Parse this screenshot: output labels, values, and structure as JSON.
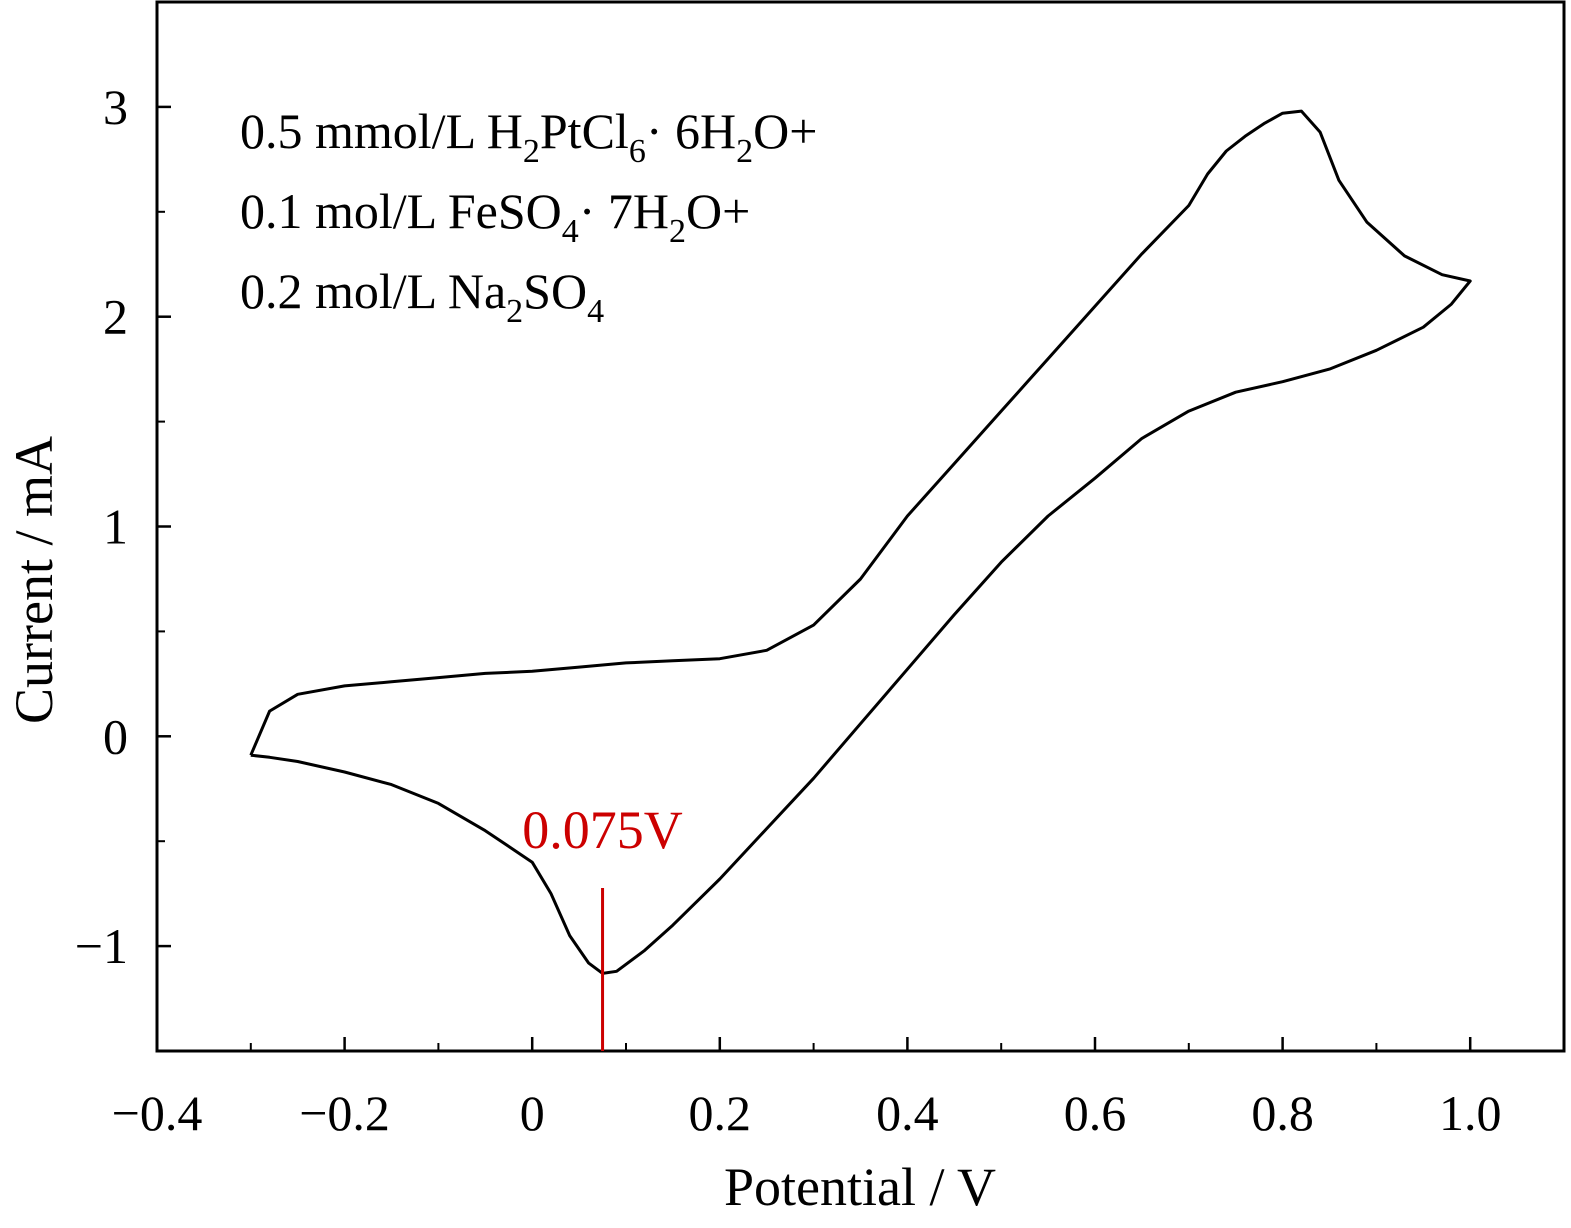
{
  "chart_data": {
    "type": "line",
    "xlabel": "Potential / V",
    "ylabel": "Current / mA",
    "xlim": [
      -0.4,
      1.1
    ],
    "ylim": [
      -1.5,
      3.5
    ],
    "x_ticks": [
      {
        "value": -0.4,
        "label": "−0.4"
      },
      {
        "value": -0.2,
        "label": "−0.2"
      },
      {
        "value": 0,
        "label": "0"
      },
      {
        "value": 0.2,
        "label": "0.2"
      },
      {
        "value": 0.4,
        "label": "0.4"
      },
      {
        "value": 0.6,
        "label": "0.6"
      },
      {
        "value": 0.8,
        "label": "0.8"
      },
      {
        "value": 1.0,
        "label": "1.0"
      }
    ],
    "y_ticks": [
      {
        "value": -1,
        "label": "−1"
      },
      {
        "value": 0,
        "label": "0"
      },
      {
        "value": 1,
        "label": "1"
      },
      {
        "value": 2,
        "label": "2"
      },
      {
        "value": 3,
        "label": "3"
      }
    ],
    "legend_lines": [
      [
        {
          "t": "0.5 mmol/L H"
        },
        {
          "t": "2",
          "sub": true
        },
        {
          "t": "PtCl"
        },
        {
          "t": "6",
          "sub": true
        },
        {
          "t": "· 6H"
        },
        {
          "t": "2",
          "sub": true
        },
        {
          "t": "O+"
        }
      ],
      [
        {
          "t": "0.1 mol/L FeSO"
        },
        {
          "t": "4",
          "sub": true
        },
        {
          "t": "· 7H"
        },
        {
          "t": "2",
          "sub": true
        },
        {
          "t": "O+"
        }
      ],
      [
        {
          "t": "0.2 mol/L Na"
        },
        {
          "t": "2",
          "sub": true
        },
        {
          "t": "SO"
        },
        {
          "t": "4",
          "sub": true
        }
      ]
    ],
    "legend_placement": "top-left",
    "annotation": {
      "x": 0.075,
      "label": "0.075V",
      "color": "#cc0000"
    },
    "grid": false,
    "series": [
      {
        "color": "#000000",
        "points": [
          [
            -0.3,
            -0.09
          ],
          [
            -0.28,
            -0.1
          ],
          [
            -0.25,
            -0.12
          ],
          [
            -0.2,
            -0.17
          ],
          [
            -0.15,
            -0.23
          ],
          [
            -0.1,
            -0.32
          ],
          [
            -0.05,
            -0.45
          ],
          [
            0.0,
            -0.6
          ],
          [
            0.02,
            -0.75
          ],
          [
            0.04,
            -0.95
          ],
          [
            0.06,
            -1.08
          ],
          [
            0.075,
            -1.13
          ],
          [
            0.09,
            -1.12
          ],
          [
            0.12,
            -1.02
          ],
          [
            0.15,
            -0.9
          ],
          [
            0.2,
            -0.68
          ],
          [
            0.25,
            -0.44
          ],
          [
            0.3,
            -0.2
          ],
          [
            0.35,
            0.06
          ],
          [
            0.4,
            0.32
          ],
          [
            0.45,
            0.58
          ],
          [
            0.5,
            0.83
          ],
          [
            0.55,
            1.05
          ],
          [
            0.6,
            1.23
          ],
          [
            0.65,
            1.42
          ],
          [
            0.7,
            1.55
          ],
          [
            0.75,
            1.64
          ],
          [
            0.8,
            1.69
          ],
          [
            0.85,
            1.75
          ],
          [
            0.9,
            1.84
          ],
          [
            0.95,
            1.95
          ],
          [
            0.98,
            2.06
          ],
          [
            1.0,
            2.17
          ],
          [
            0.97,
            2.2
          ],
          [
            0.93,
            2.29
          ],
          [
            0.89,
            2.45
          ],
          [
            0.86,
            2.65
          ],
          [
            0.84,
            2.88
          ],
          [
            0.82,
            2.98
          ],
          [
            0.8,
            2.97
          ],
          [
            0.78,
            2.92
          ],
          [
            0.76,
            2.86
          ],
          [
            0.74,
            2.79
          ],
          [
            0.72,
            2.68
          ],
          [
            0.7,
            2.53
          ],
          [
            0.65,
            2.3
          ],
          [
            0.6,
            2.05
          ],
          [
            0.55,
            1.8
          ],
          [
            0.5,
            1.55
          ],
          [
            0.45,
            1.3
          ],
          [
            0.4,
            1.05
          ],
          [
            0.35,
            0.75
          ],
          [
            0.3,
            0.53
          ],
          [
            0.25,
            0.41
          ],
          [
            0.2,
            0.37
          ],
          [
            0.15,
            0.36
          ],
          [
            0.1,
            0.35
          ],
          [
            0.05,
            0.33
          ],
          [
            0.0,
            0.31
          ],
          [
            -0.05,
            0.3
          ],
          [
            -0.1,
            0.28
          ],
          [
            -0.15,
            0.26
          ],
          [
            -0.2,
            0.24
          ],
          [
            -0.25,
            0.2
          ],
          [
            -0.28,
            0.12
          ],
          [
            -0.3,
            -0.09
          ]
        ]
      }
    ]
  }
}
